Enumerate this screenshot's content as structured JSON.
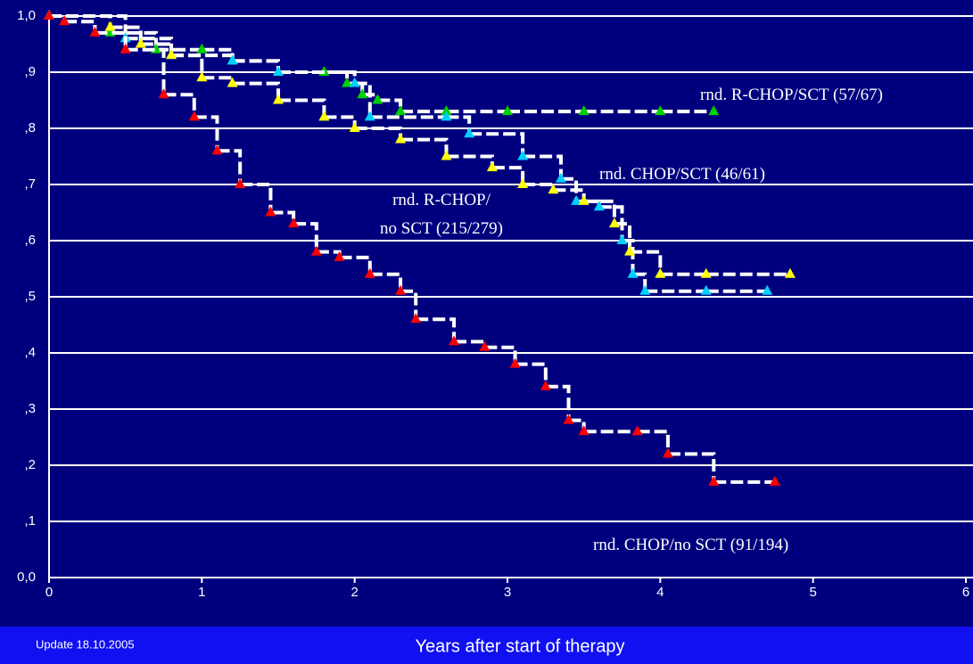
{
  "chart_data": {
    "type": "step",
    "x_label": "Years after start of therapy",
    "note": "Update 18.10.2005",
    "xlim": [
      0,
      6
    ],
    "xticks": [
      0,
      1,
      2,
      3,
      4,
      5,
      6
    ],
    "ylim": [
      0,
      1
    ],
    "yticks": [
      {
        "value": 0,
        "label": "0,0"
      },
      {
        "value": 0.1,
        "label": ",1"
      },
      {
        "value": 0.2,
        "label": ",2"
      },
      {
        "value": 0.3,
        "label": ",3"
      },
      {
        "value": 0.4,
        "label": ",4"
      },
      {
        "value": 0.5,
        "label": ",5"
      },
      {
        "value": 0.6,
        "label": ",6"
      },
      {
        "value": 0.7,
        "label": ",7"
      },
      {
        "value": 0.8,
        "label": ",8"
      },
      {
        "value": 0.9,
        "label": ",9"
      },
      {
        "value": 1,
        "label": "1,0"
      }
    ],
    "grid": true,
    "series": [
      {
        "name": "rnd. R-CHOP/SCT (57/67)",
        "color": "#00d000",
        "x": [
          0,
          0.4,
          0.7,
          1.0,
          1.2,
          1.5,
          1.8,
          1.95,
          2.05,
          2.15,
          2.3,
          2.6,
          3.0,
          3.5,
          4.0,
          4.35
        ],
        "values": [
          1.0,
          0.97,
          0.94,
          0.94,
          0.92,
          0.9,
          0.9,
          0.88,
          0.86,
          0.85,
          0.83,
          0.83,
          0.83,
          0.83,
          0.83,
          0.83
        ]
      },
      {
        "name": "rnd. CHOP/SCT (46/61)",
        "color": "#00d0ff",
        "x": [
          0,
          0.5,
          0.8,
          1.2,
          1.5,
          2.0,
          2.1,
          2.6,
          2.75,
          3.1,
          3.35,
          3.45,
          3.6,
          3.75,
          3.82,
          3.9,
          4.3,
          4.7
        ],
        "values": [
          1.0,
          0.96,
          0.93,
          0.92,
          0.9,
          0.88,
          0.82,
          0.82,
          0.79,
          0.75,
          0.71,
          0.67,
          0.66,
          0.6,
          0.54,
          0.51,
          0.51,
          0.51
        ]
      },
      {
        "name": "rnd. R-CHOP/\nno SCT (215/279)",
        "color": "#ffff00",
        "x": [
          0,
          0.4,
          0.6,
          0.8,
          1.0,
          1.2,
          1.5,
          1.8,
          2.0,
          2.3,
          2.6,
          2.9,
          3.1,
          3.3,
          3.5,
          3.7,
          3.8,
          4.0,
          4.3,
          4.85
        ],
        "values": [
          1.0,
          0.98,
          0.95,
          0.93,
          0.89,
          0.88,
          0.85,
          0.82,
          0.8,
          0.78,
          0.75,
          0.73,
          0.7,
          0.69,
          0.67,
          0.63,
          0.58,
          0.54,
          0.54,
          0.54
        ]
      },
      {
        "name": "rnd. CHOP/no SCT (91/194)",
        "color": "#ff0000",
        "x": [
          0,
          0.1,
          0.3,
          0.5,
          0.75,
          0.95,
          1.1,
          1.25,
          1.45,
          1.6,
          1.75,
          1.9,
          2.1,
          2.3,
          2.4,
          2.65,
          2.85,
          3.05,
          3.25,
          3.4,
          3.5,
          3.85,
          4.05,
          4.35,
          4.75
        ],
        "values": [
          1.0,
          0.99,
          0.97,
          0.94,
          0.86,
          0.82,
          0.76,
          0.7,
          0.65,
          0.63,
          0.58,
          0.57,
          0.54,
          0.51,
          0.46,
          0.42,
          0.41,
          0.38,
          0.34,
          0.28,
          0.26,
          0.26,
          0.22,
          0.17,
          0.17
        ]
      }
    ]
  }
}
